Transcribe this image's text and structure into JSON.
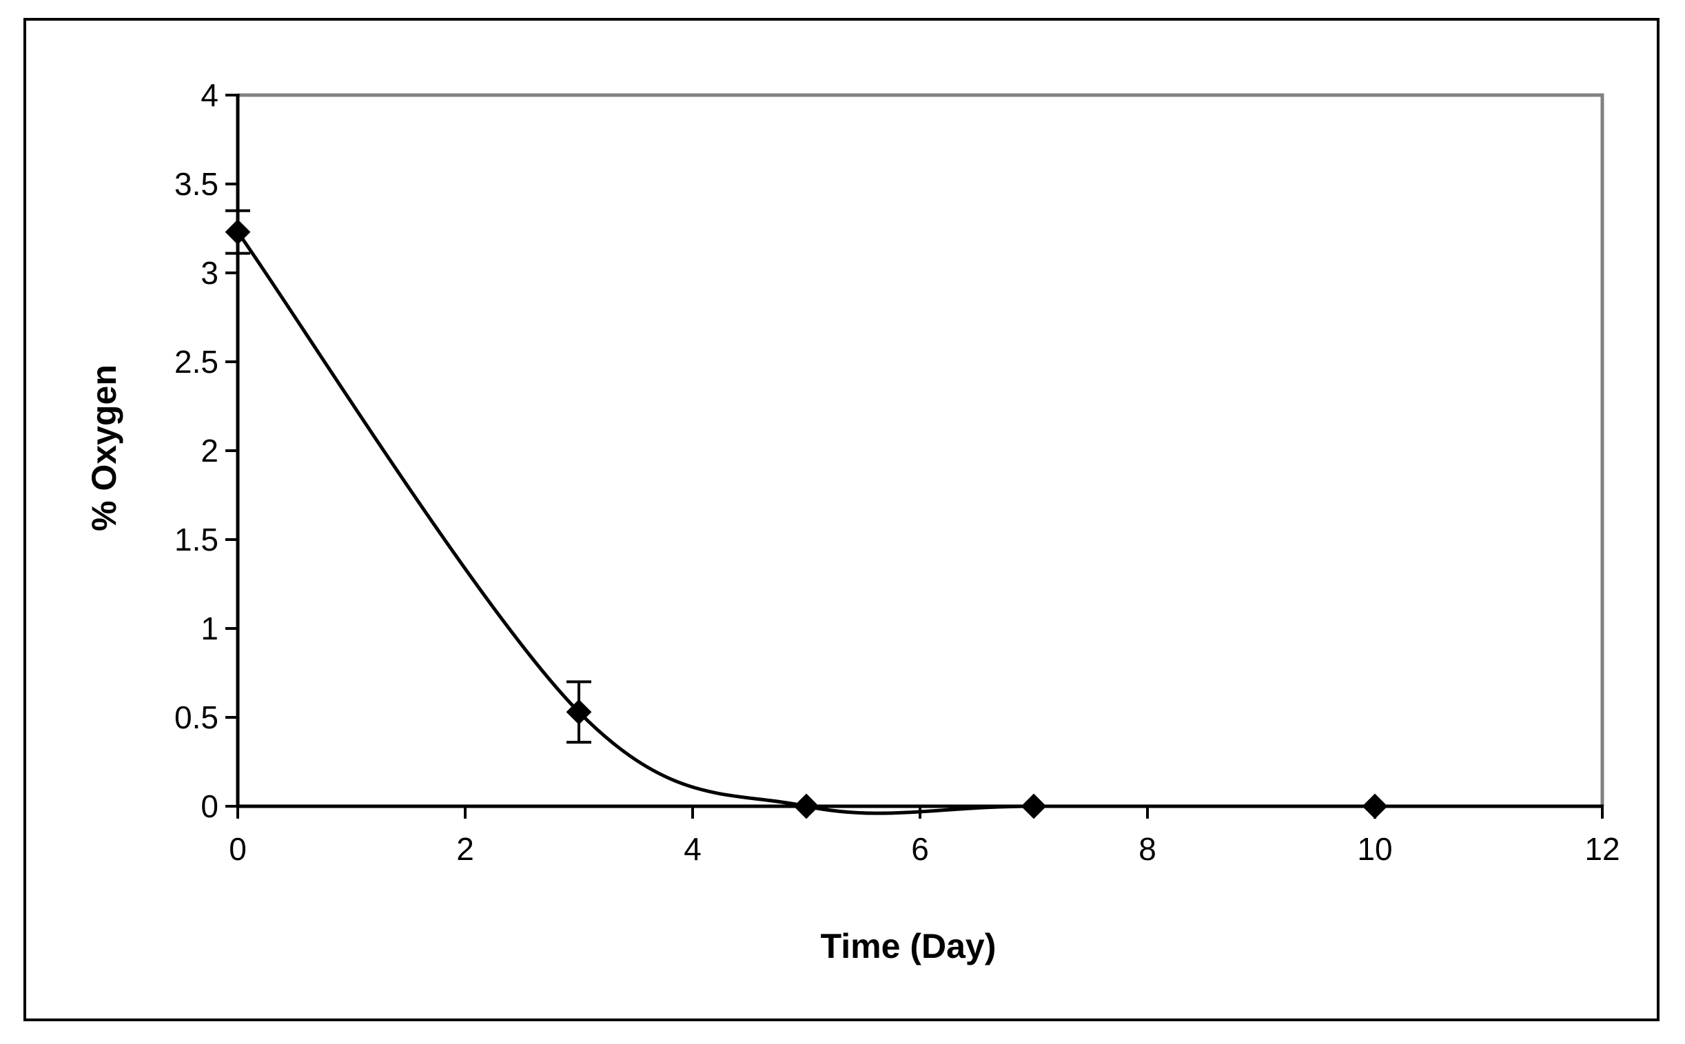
{
  "chart_data": {
    "type": "line",
    "title": "",
    "xlabel": "Time (Day)",
    "ylabel": "% Oxygen",
    "xlim": [
      0,
      12
    ],
    "ylim": [
      0,
      4
    ],
    "x_ticks": [
      0,
      2,
      4,
      6,
      8,
      10,
      12
    ],
    "y_ticks": [
      0,
      0.5,
      1,
      1.5,
      2,
      2.5,
      3,
      3.5,
      4
    ],
    "y_tick_labels": [
      "0",
      "0.5",
      "1",
      "1.5",
      "2",
      "2.5",
      "3",
      "3.5",
      "4"
    ],
    "grid": false,
    "legend": "none",
    "marker": "diamond",
    "series": [
      {
        "x": [
          0,
          3,
          5,
          7,
          10
        ],
        "y": [
          3.23,
          0.53,
          0.0,
          0.0,
          0.0
        ],
        "error": [
          0.12,
          0.17,
          0,
          0,
          0
        ]
      }
    ],
    "smoothed": true,
    "colors": {
      "line": "#000000",
      "plot_border": "#808080"
    }
  }
}
